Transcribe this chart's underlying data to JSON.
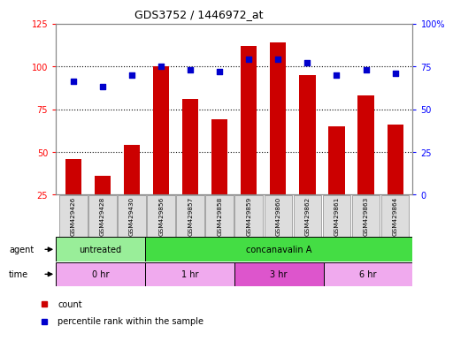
{
  "title": "GDS3752 / 1446972_at",
  "samples": [
    "GSM429426",
    "GSM429428",
    "GSM429430",
    "GSM429856",
    "GSM429857",
    "GSM429858",
    "GSM429859",
    "GSM429860",
    "GSM429862",
    "GSM429861",
    "GSM429863",
    "GSM429864"
  ],
  "counts": [
    46,
    36,
    54,
    100,
    81,
    69,
    112,
    114,
    95,
    65,
    83,
    66
  ],
  "percentile_ranks": [
    66,
    63,
    70,
    75,
    73,
    72,
    79,
    79,
    77,
    70,
    73,
    71
  ],
  "ylim_left": [
    25,
    125
  ],
  "ylim_right": [
    0,
    100
  ],
  "yticks_left": [
    25,
    50,
    75,
    100,
    125
  ],
  "ytick_labels_left": [
    "25",
    "50",
    "75",
    "100",
    "125"
  ],
  "yticks_right": [
    0,
    25,
    50,
    75,
    100
  ],
  "ytick_labels_right": [
    "0",
    "25",
    "50",
    "75",
    "100%"
  ],
  "bar_color": "#cc0000",
  "dot_color": "#0000cc",
  "bar_width": 0.55,
  "agent_groups": [
    {
      "label": "untreated",
      "start": 0,
      "end": 3,
      "color": "#99ee99"
    },
    {
      "label": "concanavalin A",
      "start": 3,
      "end": 12,
      "color": "#44dd44"
    }
  ],
  "time_groups": [
    {
      "label": "0 hr",
      "start": 0,
      "end": 3,
      "color": "#f0aaee"
    },
    {
      "label": "1 hr",
      "start": 3,
      "end": 6,
      "color": "#f0aaee"
    },
    {
      "label": "3 hr",
      "start": 6,
      "end": 9,
      "color": "#dd55cc"
    },
    {
      "label": "6 hr",
      "start": 9,
      "end": 12,
      "color": "#f0aaee"
    }
  ],
  "legend_count_label": "count",
  "legend_pct_label": "percentile rank within the sample",
  "grid_dotted_values": [
    50,
    75,
    100
  ],
  "background_color": "#ffffff",
  "sample_box_color": "#dddddd",
  "sample_box_border": "#888888",
  "agent_label": "agent",
  "time_label": "time"
}
